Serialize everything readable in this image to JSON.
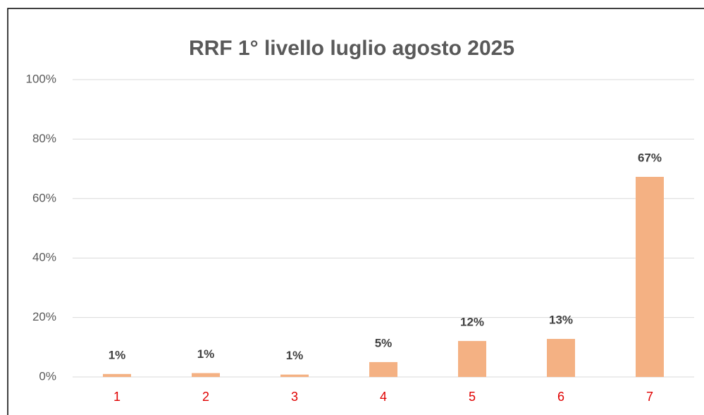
{
  "chart_data": {
    "type": "bar",
    "title": "RRF 1° livello luglio agosto 2025",
    "categories": [
      "1",
      "2",
      "3",
      "4",
      "5",
      "6",
      "7"
    ],
    "values": [
      1.0,
      1.3,
      0.8,
      5,
      12.1,
      12.8,
      67.3
    ],
    "value_labels": [
      "1%",
      "1%",
      "1%",
      "5%",
      "12%",
      "13%",
      "67%"
    ],
    "color": "#f4b183",
    "ylim": [
      0,
      100
    ],
    "yticks": [
      {
        "value": 0,
        "label": "0%"
      },
      {
        "value": 20,
        "label": "20%"
      },
      {
        "value": 40,
        "label": "40%"
      },
      {
        "value": 60,
        "label": "60%"
      },
      {
        "value": 80,
        "label": "80%"
      },
      {
        "value": 100,
        "label": "100%"
      }
    ],
    "grid": true
  }
}
